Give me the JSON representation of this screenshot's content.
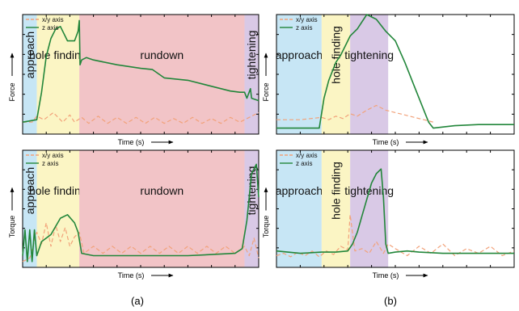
{
  "captions": [
    "(a)",
    "(b)"
  ],
  "colors": {
    "approach": "#c7e6f5",
    "hole_finding": "#fbf5c4",
    "rundown": "#f2c4c7",
    "tightening": "#d9c9e6",
    "z_axis": "#22863a",
    "xy_axis": "#f2a27a"
  },
  "chart_data": [
    {
      "type": "line",
      "panel": "(a) top",
      "xlabel": "Time (s)",
      "ylabel": "Force",
      "x_ticks_labeled": false,
      "y_ticks_labeled": false,
      "xlim": [
        0,
        100
      ],
      "ylim": [
        0,
        100
      ],
      "legend": {
        "placement": "top-left",
        "entries": [
          "x/y axis",
          "z axis"
        ]
      },
      "phases": [
        {
          "label": "approach",
          "color": "approach",
          "start": 0,
          "end": 6
        },
        {
          "label": "hole finding",
          "color": "hole_finding",
          "start": 6,
          "end": 24
        },
        {
          "label": "rundown",
          "color": "rundown",
          "start": 24,
          "end": 94
        },
        {
          "label": "tightening",
          "color": "tightening",
          "start": 94,
          "end": 100
        }
      ],
      "series": [
        {
          "name": "x/y axis",
          "style": "dashed",
          "color": "xy_axis",
          "x": [
            0,
            4,
            6,
            9,
            13,
            17,
            20,
            22,
            25,
            28,
            32,
            36,
            40,
            44,
            48,
            52,
            56,
            60,
            64,
            68,
            72,
            76,
            80,
            84,
            88,
            92,
            96,
            100
          ],
          "y": [
            10,
            10,
            15,
            12,
            18,
            10,
            16,
            10,
            14,
            9,
            15,
            9,
            14,
            9,
            14,
            9,
            14,
            9,
            13,
            9,
            14,
            9,
            13,
            9,
            14,
            10,
            14,
            18
          ]
        },
        {
          "name": "z axis",
          "style": "solid",
          "color": "z_axis",
          "x": [
            0,
            6,
            8,
            10,
            12,
            14,
            16,
            19,
            22,
            23.5,
            24,
            24.3,
            25,
            27,
            30,
            40,
            50,
            55,
            60,
            70,
            80,
            88,
            92,
            94,
            95,
            96.5,
            97,
            100
          ],
          "y": [
            10,
            12,
            35,
            65,
            80,
            88,
            90,
            78,
            78,
            86,
            95,
            58,
            62,
            64,
            62,
            58,
            55,
            54,
            47,
            45,
            40,
            36,
            35,
            35,
            30,
            38,
            30,
            28
          ]
        }
      ]
    },
    {
      "type": "line",
      "panel": "(b) top",
      "xlabel": "Time (s)",
      "ylabel": "Force",
      "x_ticks_labeled": false,
      "y_ticks_labeled": false,
      "xlim": [
        0,
        100
      ],
      "ylim": [
        0,
        100
      ],
      "legend": {
        "placement": "top-left",
        "entries": [
          "x/y axis",
          "z axis"
        ]
      },
      "phases": [
        {
          "label": "approach",
          "color": "approach",
          "start": 0,
          "end": 19
        },
        {
          "label": "hole finding",
          "color": "hole_finding",
          "start": 19,
          "end": 31
        },
        {
          "label": "tightening",
          "color": "tightening",
          "start": 31,
          "end": 47
        },
        {
          "label": "",
          "color": "none",
          "start": 47,
          "end": 100
        }
      ],
      "series": [
        {
          "name": "x/y axis",
          "style": "dashed",
          "color": "xy_axis",
          "x": [
            0,
            10,
            19,
            22,
            25,
            28,
            31,
            34,
            38,
            42,
            46,
            50,
            54,
            58,
            62,
            64,
            66
          ],
          "y": [
            12,
            12,
            14,
            12,
            15,
            13,
            17,
            15,
            20,
            24,
            20,
            18,
            16,
            14,
            12,
            11,
            10
          ]
        },
        {
          "name": "z axis",
          "style": "solid",
          "color": "z_axis",
          "x": [
            0,
            18,
            20,
            22,
            25,
            27,
            29,
            31,
            34,
            38,
            42,
            46,
            50,
            54,
            58,
            62,
            64,
            66,
            75,
            85,
            100
          ],
          "y": [
            5,
            5,
            30,
            45,
            60,
            66,
            74,
            82,
            88,
            100,
            96,
            86,
            78,
            60,
            40,
            20,
            10,
            5,
            7,
            8,
            8
          ]
        }
      ]
    },
    {
      "type": "line",
      "panel": "(a) bottom",
      "xlabel": "Time (s)",
      "ylabel": "Torque",
      "x_ticks_labeled": false,
      "y_ticks_labeled": false,
      "xlim": [
        0,
        100
      ],
      "ylim": [
        0,
        100
      ],
      "legend": {
        "placement": "top-left",
        "entries": [
          "x/y axis",
          "z axis"
        ]
      },
      "phases": [
        {
          "label": "approach",
          "color": "approach",
          "start": 0,
          "end": 6
        },
        {
          "label": "hole finding",
          "color": "hole_finding",
          "start": 6,
          "end": 24
        },
        {
          "label": "rundown",
          "color": "rundown",
          "start": 24,
          "end": 94
        },
        {
          "label": "tightening",
          "color": "tightening",
          "start": 94,
          "end": 100
        }
      ],
      "series": [
        {
          "name": "x/y axis",
          "style": "dashed",
          "color": "xy_axis",
          "x": [
            0,
            3,
            6,
            8,
            10,
            12,
            14,
            16,
            18,
            20,
            22,
            24,
            26,
            30,
            34,
            38,
            42,
            46,
            50,
            54,
            58,
            62,
            66,
            70,
            74,
            78,
            82,
            86,
            90,
            94,
            96,
            98,
            100
          ],
          "y": [
            5,
            8,
            30,
            20,
            38,
            18,
            36,
            22,
            34,
            18,
            26,
            30,
            12,
            18,
            12,
            18,
            12,
            18,
            12,
            18,
            12,
            18,
            12,
            18,
            12,
            18,
            12,
            18,
            12,
            18,
            10,
            25,
            8
          ]
        },
        {
          "name": "z axis",
          "style": "solid",
          "color": "z_axis",
          "x": [
            0,
            1,
            2,
            3,
            4,
            5,
            6,
            8,
            12,
            16,
            19,
            22,
            23.5,
            25,
            30,
            40,
            50,
            60,
            70,
            80,
            90,
            93,
            95,
            97,
            99,
            100
          ],
          "y": [
            10,
            32,
            5,
            32,
            5,
            32,
            10,
            22,
            28,
            42,
            45,
            38,
            30,
            12,
            10,
            10,
            10,
            10,
            10,
            11,
            12,
            16,
            40,
            80,
            88,
            60
          ]
        }
      ]
    },
    {
      "type": "line",
      "panel": "(b) bottom",
      "xlabel": "Time (s)",
      "ylabel": "Torque",
      "x_ticks_labeled": false,
      "y_ticks_labeled": false,
      "xlim": [
        0,
        100
      ],
      "ylim": [
        0,
        100
      ],
      "legend": {
        "placement": "top-left",
        "entries": [
          "x/y axis",
          "z axis"
        ]
      },
      "phases": [
        {
          "label": "approach",
          "color": "approach",
          "start": 0,
          "end": 19
        },
        {
          "label": "hole finding",
          "color": "hole_finding",
          "start": 19,
          "end": 31
        },
        {
          "label": "tightening",
          "color": "tightening",
          "start": 31,
          "end": 47
        },
        {
          "label": "",
          "color": "none",
          "start": 47,
          "end": 100
        }
      ],
      "series": [
        {
          "name": "x/y axis",
          "style": "dashed",
          "color": "xy_axis",
          "x": [
            0,
            3,
            6,
            9,
            12,
            15,
            18,
            21,
            24,
            27,
            30,
            31,
            33,
            36,
            39,
            42,
            45,
            47,
            50,
            55,
            60,
            65,
            70,
            75,
            80,
            85,
            90,
            95,
            100
          ],
          "y": [
            10,
            12,
            9,
            13,
            10,
            14,
            9,
            14,
            11,
            18,
            15,
            45,
            14,
            16,
            12,
            22,
            12,
            20,
            16,
            10,
            18,
            12,
            20,
            10,
            16,
            12,
            18,
            10,
            14
          ]
        },
        {
          "name": "z axis",
          "style": "solid",
          "color": "z_axis",
          "x": [
            0,
            10,
            19,
            25,
            30,
            32,
            34,
            36,
            38,
            40,
            42,
            44,
            45,
            46,
            47,
            50,
            55,
            60,
            70,
            80,
            90,
            100
          ],
          "y": [
            14,
            12,
            13,
            13,
            14,
            20,
            30,
            44,
            58,
            72,
            80,
            84,
            60,
            20,
            12,
            13,
            14,
            13,
            12,
            12,
            12,
            12
          ]
        }
      ]
    }
  ]
}
